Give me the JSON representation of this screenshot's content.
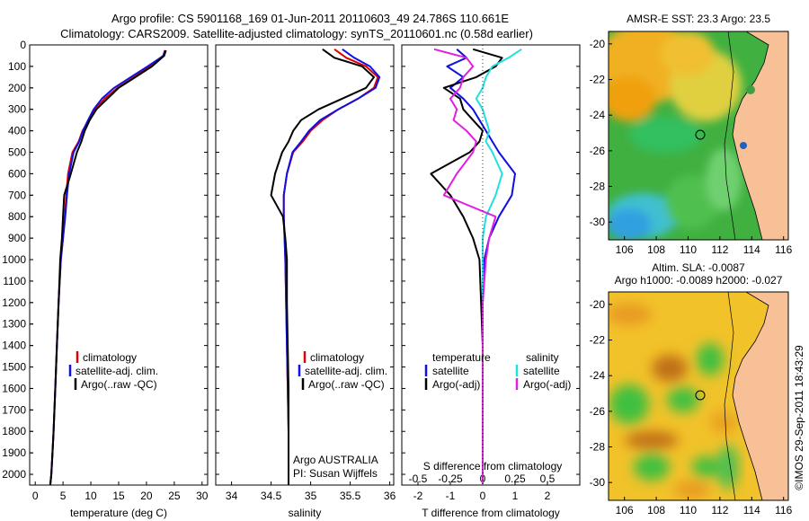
{
  "title_line1": "Argo profile: CS 5901168_169 01-Jun-2011 20110603_49 24.786S 110.661E",
  "title_line2": "Climatology: CARS2009. Satellite-adjusted climatology: synTS_20110601.nc (0.58d earlier)",
  "watermark": "©IMOS 29-Sep-2011 18:43:29",
  "colors": {
    "climatology": "#e00000",
    "satellite": "#1010e0",
    "argo": "#000000",
    "sal_sat": "#20e0e0",
    "sal_argo": "#e020e0"
  },
  "chart_data": [
    {
      "type": "line",
      "id": "temperature",
      "xlabel": "temperature (deg C)",
      "xlim": [
        -1,
        31
      ],
      "xticks": [
        0,
        5,
        10,
        15,
        20,
        25,
        30
      ],
      "ylim": [
        0,
        2050
      ],
      "yticks": [
        0,
        100,
        200,
        300,
        400,
        500,
        600,
        700,
        800,
        900,
        1000,
        1100,
        1200,
        1300,
        1400,
        1500,
        1600,
        1700,
        1800,
        1900,
        2000
      ],
      "legend": [
        "climatology",
        "satellite-adj. clim.",
        "Argo(..raw -QC)"
      ],
      "series": [
        {
          "name": "climatology",
          "color_key": "climatology",
          "x": [
            23.3,
            23.0,
            20.5,
            17.8,
            14.8,
            12.5,
            10.8,
            9.6,
            8.5,
            7.8,
            6.7,
            5.9,
            5.6,
            5.3,
            5.0,
            4.6,
            4.2,
            3.9,
            3.6,
            3.3,
            3.1,
            2.9,
            2.7
          ],
          "y": [
            25,
            50,
            100,
            150,
            200,
            250,
            300,
            350,
            400,
            450,
            500,
            600,
            700,
            800,
            900,
            1000,
            1200,
            1400,
            1600,
            1800,
            1900,
            2000,
            2050
          ]
        },
        {
          "name": "satellite-adj. clim.",
          "color_key": "satellite",
          "x": [
            23.4,
            23.1,
            20.2,
            17.2,
            14.2,
            12.0,
            10.5,
            9.5,
            8.6,
            7.9,
            6.9,
            6.1,
            5.7,
            5.4,
            5.0,
            4.6,
            4.2,
            3.9,
            3.6,
            3.3,
            3.1,
            2.9,
            2.7
          ],
          "y": [
            25,
            50,
            100,
            150,
            200,
            250,
            300,
            350,
            400,
            450,
            500,
            600,
            700,
            800,
            900,
            1000,
            1200,
            1400,
            1600,
            1800,
            1900,
            2000,
            2050
          ]
        },
        {
          "name": "Argo(..raw -QC)",
          "color_key": "argo",
          "x": [
            23.5,
            23.2,
            21.0,
            18.0,
            15.0,
            13.0,
            11.0,
            9.8,
            8.9,
            8.3,
            7.5,
            6.4,
            5.2,
            5.0,
            4.8,
            4.5,
            4.2,
            3.9,
            3.6,
            3.3,
            3.1,
            2.9,
            2.7
          ],
          "y": [
            25,
            50,
            100,
            150,
            200,
            250,
            300,
            350,
            400,
            450,
            500,
            600,
            700,
            800,
            900,
            1000,
            1200,
            1400,
            1600,
            1800,
            1900,
            2000,
            2050
          ]
        }
      ]
    },
    {
      "type": "line",
      "id": "salinity",
      "xlabel": "salinity",
      "xlim": [
        33.8,
        36.05
      ],
      "xticks": [
        34,
        34.5,
        35,
        35.5,
        36
      ],
      "xticklabels": [
        "34",
        "34.5",
        "35",
        "35.5",
        "36"
      ],
      "ylim": [
        0,
        2050
      ],
      "legend": [
        "climatology",
        "satellite-adj. clim.",
        "Argo(..raw -QC)"
      ],
      "annotation": [
        "Argo AUSTRALIA",
        "PI: Susan Wijffels"
      ],
      "series": [
        {
          "name": "climatology",
          "color_key": "climatology",
          "x": [
            35.3,
            35.45,
            35.7,
            35.85,
            35.8,
            35.6,
            35.35,
            35.15,
            35.0,
            34.9,
            34.78,
            34.7,
            34.66,
            34.66,
            34.67,
            34.68,
            34.69,
            34.7,
            34.71,
            34.72,
            34.72,
            34.72
          ],
          "y": [
            20,
            60,
            100,
            150,
            200,
            250,
            300,
            350,
            400,
            450,
            500,
            600,
            700,
            800,
            900,
            1000,
            1200,
            1400,
            1600,
            1800,
            2000,
            2050
          ]
        },
        {
          "name": "satellite-adj. clim.",
          "color_key": "satellite",
          "x": [
            35.4,
            35.55,
            35.75,
            35.87,
            35.82,
            35.6,
            35.35,
            35.12,
            34.98,
            34.88,
            34.77,
            34.7,
            34.66,
            34.66,
            34.67,
            34.68,
            34.69,
            34.7,
            34.71,
            34.72,
            34.72,
            34.72
          ],
          "y": [
            20,
            60,
            100,
            150,
            200,
            250,
            300,
            350,
            400,
            450,
            500,
            600,
            700,
            800,
            900,
            1000,
            1200,
            1400,
            1600,
            1800,
            2000,
            2050
          ]
        },
        {
          "name": "Argo(..raw -QC)",
          "color_key": "argo",
          "x": [
            35.15,
            35.3,
            35.65,
            35.8,
            35.7,
            35.4,
            35.1,
            34.88,
            34.78,
            34.72,
            34.64,
            34.55,
            34.5,
            34.65,
            34.68,
            34.7,
            34.7,
            34.71,
            34.72,
            34.72,
            34.72,
            34.72
          ],
          "y": [
            20,
            60,
            100,
            150,
            200,
            250,
            300,
            350,
            400,
            450,
            500,
            600,
            700,
            800,
            900,
            1000,
            1200,
            1400,
            1600,
            1800,
            2000,
            2050
          ]
        }
      ]
    },
    {
      "type": "line",
      "id": "difference",
      "xlabel": "T difference from climatology",
      "xlabel_top": "S difference from climatology",
      "xlim": [
        -2.5,
        3.0
      ],
      "xticks": [
        -2,
        -1,
        0,
        1,
        2
      ],
      "xticks_top_positions": [
        -2,
        -1,
        0,
        1,
        2
      ],
      "xticklabels_top": [
        "-0.5",
        "-0.25",
        "0",
        "0.25",
        "0.5"
      ],
      "ylim": [
        0,
        2050
      ],
      "legend_left_title": "temperature",
      "legend_right_title": "salinity",
      "legend_left": [
        "satellite",
        "Argo(-adj)"
      ],
      "legend_right": [
        "satellite",
        "Argo(-adj)"
      ],
      "series": [
        {
          "name": "temperature satellite",
          "color_key": "satellite",
          "x": [
            -0.8,
            -0.5,
            -1.1,
            -0.6,
            -1.0,
            -0.6,
            -0.3,
            -0.1,
            0.1,
            0.3,
            0.5,
            1.0,
            0.9,
            0.5,
            0.2,
            0.05,
            0.0,
            0.0,
            0.0,
            0.0
          ],
          "y": [
            20,
            60,
            100,
            150,
            200,
            250,
            300,
            350,
            400,
            450,
            500,
            600,
            700,
            800,
            900,
            1000,
            1200,
            1400,
            1600,
            2050
          ]
        },
        {
          "name": "temperature Argo(-adj)",
          "color_key": "argo",
          "x": [
            -0.3,
            0.6,
            0.4,
            -0.2,
            -1.2,
            -0.7,
            -0.6,
            -0.3,
            0.0,
            -0.1,
            -0.4,
            -1.6,
            -1.0,
            -0.6,
            -0.3,
            -0.1,
            -0.05,
            0.0,
            0.0,
            0.0
          ],
          "y": [
            20,
            60,
            100,
            150,
            200,
            250,
            300,
            350,
            400,
            450,
            500,
            600,
            700,
            800,
            900,
            1000,
            1200,
            1400,
            1600,
            2050
          ]
        },
        {
          "name": "salinity satellite",
          "color_key": "sal_sat",
          "x": [
            1.2,
            0.8,
            0.3,
            0.1,
            0.0,
            -0.2,
            0.0,
            0.1,
            0.2,
            0.1,
            0.3,
            0.6,
            0.4,
            0.1,
            0.0,
            0.0,
            0.0,
            0.0,
            0.0,
            0.0
          ],
          "y": [
            20,
            60,
            100,
            150,
            200,
            250,
            300,
            350,
            400,
            450,
            500,
            600,
            700,
            800,
            900,
            1000,
            1200,
            1400,
            1600,
            2050
          ]
        },
        {
          "name": "salinity Argo(-adj)",
          "color_key": "sal_argo",
          "x": [
            -1.5,
            -0.5,
            -0.3,
            -0.6,
            -0.7,
            -1.0,
            -0.8,
            -0.9,
            -0.5,
            -0.2,
            -0.3,
            -0.8,
            -1.2,
            0.4,
            0.2,
            0.1,
            0.0,
            0.0,
            0.0,
            0.0
          ],
          "y": [
            20,
            60,
            100,
            150,
            200,
            250,
            300,
            350,
            400,
            450,
            500,
            600,
            700,
            800,
            900,
            1000,
            1200,
            1400,
            1600,
            2050
          ]
        }
      ]
    },
    {
      "type": "heatmap",
      "id": "sst_map",
      "title": "AMSR-E SST: 23.3 Argo: 23.5",
      "xlim": [
        105,
        116.3
      ],
      "ylim": [
        -31,
        -19.3
      ],
      "xticks": [
        106,
        108,
        110,
        112,
        114,
        116
      ],
      "yticks": [
        -20,
        -22,
        -24,
        -26,
        -28,
        -30
      ],
      "marker": {
        "lon": 110.66,
        "lat": -24.79
      }
    },
    {
      "type": "heatmap",
      "id": "sla_map",
      "title_line1": "Altim. SLA: -0.0087",
      "title_line2": "Argo h1000: -0.0089 h2000: -0.027",
      "xlim": [
        105,
        116.3
      ],
      "ylim": [
        -31,
        -19.3
      ],
      "xticks": [
        106,
        108,
        110,
        112,
        114,
        116
      ],
      "yticks": [
        -20,
        -22,
        -24,
        -26,
        -28,
        -30
      ],
      "marker": {
        "lon": 110.66,
        "lat": -24.79
      }
    }
  ]
}
